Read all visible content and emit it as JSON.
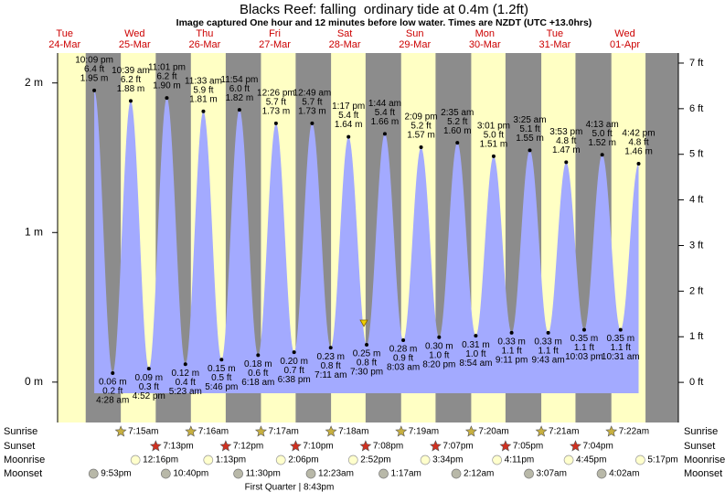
{
  "chart_data": {
    "type": "tide",
    "title": "Blacks Reef: falling  ordinary tide at 0.4m (1.2ft)",
    "subtitle": "Image captured One hour and 12 minutes before low water. Times are NZDT (UTC +13.0hrs)",
    "ylim": [
      -0.27,
      2.2
    ],
    "yticks": [
      {
        "value": 0,
        "label": "0 m"
      },
      {
        "value": 1,
        "label": "1 m"
      },
      {
        "value": 2,
        "label": "2 m"
      }
    ],
    "y2lim": [
      -0.88,
      7.22
    ],
    "y2ticks": [
      {
        "value": 0,
        "label": "0 ft"
      },
      {
        "value": 1,
        "label": "1 ft"
      },
      {
        "value": 2,
        "label": "2 ft"
      },
      {
        "value": 3,
        "label": "3 ft"
      },
      {
        "value": 4,
        "label": "4 ft"
      },
      {
        "value": 5,
        "label": "5 ft"
      },
      {
        "value": 6,
        "label": "6 ft"
      },
      {
        "value": 7,
        "label": "7 ft"
      }
    ],
    "row_labels": [
      "Sunrise",
      "Sunset",
      "Moonrise",
      "Moonset"
    ],
    "days": [
      {
        "weekday": "Tue",
        "date": "24-Mar",
        "sunrise": null,
        "sunset": null,
        "moonrise": null,
        "moonset": "9:53pm",
        "tides": [
          {
            "time": "10:09 pm",
            "m": {
              "value": 1.95,
              "label": "1.95 m"
            },
            "ft": {
              "value": 6.4,
              "label": "6.4 ft"
            }
          }
        ]
      },
      {
        "weekday": "Wed",
        "date": "25-Mar",
        "sunrise": "7:15am",
        "sunset": "7:13pm",
        "moonrise": "12:16pm",
        "moonset": "10:40pm",
        "tides": [
          {
            "time": "4:28 am",
            "m": {
              "value": 0.06,
              "label": "0.06 m"
            },
            "ft": {
              "value": 0.2,
              "label": "0.2 ft"
            }
          },
          {
            "time": "10:39 am",
            "m": {
              "value": 1.88,
              "label": "1.88 m"
            },
            "ft": {
              "value": 6.2,
              "label": "6.2 ft"
            }
          },
          {
            "time": "4:52 pm",
            "m": {
              "value": 0.09,
              "label": "0.09 m"
            },
            "ft": {
              "value": 0.3,
              "label": "0.3 ft"
            }
          },
          {
            "time": "11:01 pm",
            "m": {
              "value": 1.9,
              "label": "1.90 m"
            },
            "ft": {
              "value": 6.2,
              "label": "6.2 ft"
            }
          }
        ]
      },
      {
        "weekday": "Thu",
        "date": "26-Mar",
        "sunrise": "7:16am",
        "sunset": "7:12pm",
        "moonrise": "1:13pm",
        "moonset": "11:30pm",
        "tides": [
          {
            "time": "5:23 am",
            "m": {
              "value": 0.12,
              "label": "0.12 m"
            },
            "ft": {
              "value": 0.4,
              "label": "0.4 ft"
            }
          },
          {
            "time": "11:33 am",
            "m": {
              "value": 1.81,
              "label": "1.81 m"
            },
            "ft": {
              "value": 5.9,
              "label": "5.9 ft"
            }
          },
          {
            "time": "5:46 pm",
            "m": {
              "value": 0.15,
              "label": "0.15 m"
            },
            "ft": {
              "value": 0.5,
              "label": "0.5 ft"
            }
          },
          {
            "time": "11:54 pm",
            "m": {
              "value": 1.82,
              "label": "1.82 m"
            },
            "ft": {
              "value": 6.0,
              "label": "6.0 ft"
            }
          }
        ]
      },
      {
        "weekday": "Fri",
        "date": "27-Mar",
        "sunrise": "7:17am",
        "sunset": "7:10pm",
        "moonrise": "2:06pm",
        "moonset": null,
        "moon_phase": "First Quarter | 8:43pm",
        "tides": [
          {
            "time": "6:18 am",
            "m": {
              "value": 0.18,
              "label": "0.18 m"
            },
            "ft": {
              "value": 0.6,
              "label": "0.6 ft"
            }
          },
          {
            "time": "12:26 pm",
            "m": {
              "value": 1.73,
              "label": "1.73 m"
            },
            "ft": {
              "value": 5.7,
              "label": "5.7 ft"
            }
          },
          {
            "time": "6:38 pm",
            "m": {
              "value": 0.2,
              "label": "0.20 m"
            },
            "ft": {
              "value": 0.7,
              "label": "0.7 ft"
            }
          }
        ]
      },
      {
        "weekday": "Sat",
        "date": "28-Mar",
        "sunrise": "7:18am",
        "sunset": "7:08pm",
        "moonrise": "2:52pm",
        "moonset": "12:23am",
        "tides": [
          {
            "time": "12:49 am",
            "m": {
              "value": 1.73,
              "label": "1.73 m"
            },
            "ft": {
              "value": 5.7,
              "label": "5.7 ft"
            }
          },
          {
            "time": "7:11 am",
            "m": {
              "value": 0.23,
              "label": "0.23 m"
            },
            "ft": {
              "value": 0.8,
              "label": "0.8 ft"
            }
          },
          {
            "time": "1:17 pm",
            "m": {
              "value": 1.64,
              "label": "1.64 m"
            },
            "ft": {
              "value": 5.4,
              "label": "5.4 ft"
            }
          },
          {
            "time": "7:30 pm",
            "m": {
              "value": 0.25,
              "label": "0.25 m"
            },
            "ft": {
              "value": 0.8,
              "label": "0.8 ft"
            }
          }
        ]
      },
      {
        "weekday": "Sun",
        "date": "29-Mar",
        "sunrise": "7:19am",
        "sunset": "7:07pm",
        "moonrise": "3:34pm",
        "moonset": "1:17am",
        "tides": [
          {
            "time": "1:44 am",
            "m": {
              "value": 1.66,
              "label": "1.66 m"
            },
            "ft": {
              "value": 5.4,
              "label": "5.4 ft"
            }
          },
          {
            "time": "8:03 am",
            "m": {
              "value": 0.28,
              "label": "0.28 m"
            },
            "ft": {
              "value": 0.9,
              "label": "0.9 ft"
            }
          },
          {
            "time": "2:09 pm",
            "m": {
              "value": 1.57,
              "label": "1.57 m"
            },
            "ft": {
              "value": 5.2,
              "label": "5.2 ft"
            }
          },
          {
            "time": "8:20 pm",
            "m": {
              "value": 0.3,
              "label": "0.30 m"
            },
            "ft": {
              "value": 1.0,
              "label": "1.0 ft"
            }
          }
        ]
      },
      {
        "weekday": "Mon",
        "date": "30-Mar",
        "sunrise": "7:20am",
        "sunset": "7:05pm",
        "moonrise": "4:11pm",
        "moonset": "2:12am",
        "tides": [
          {
            "time": "2:35 am",
            "m": {
              "value": 1.6,
              "label": "1.60 m"
            },
            "ft": {
              "value": 5.2,
              "label": "5.2 ft"
            }
          },
          {
            "time": "8:54 am",
            "m": {
              "value": 0.31,
              "label": "0.31 m"
            },
            "ft": {
              "value": 1.0,
              "label": "1.0 ft"
            }
          },
          {
            "time": "3:01 pm",
            "m": {
              "value": 1.51,
              "label": "1.51 m"
            },
            "ft": {
              "value": 5.0,
              "label": "5.0 ft"
            }
          },
          {
            "time": "9:11 pm",
            "m": {
              "value": 0.33,
              "label": "0.33 m"
            },
            "ft": {
              "value": 1.1,
              "label": "1.1 ft"
            }
          }
        ]
      },
      {
        "weekday": "Tue",
        "date": "31-Mar",
        "sunrise": "7:21am",
        "sunset": "7:04pm",
        "moonrise": "4:45pm",
        "moonset": "3:07am",
        "tides": [
          {
            "time": "3:25 am",
            "m": {
              "value": 1.55,
              "label": "1.55 m"
            },
            "ft": {
              "value": 5.1,
              "label": "5.1 ft"
            }
          },
          {
            "time": "9:43 am",
            "m": {
              "value": 0.33,
              "label": "0.33 m"
            },
            "ft": {
              "value": 1.1,
              "label": "1.1 ft"
            }
          },
          {
            "time": "3:53 pm",
            "m": {
              "value": 1.47,
              "label": "1.47 m"
            },
            "ft": {
              "value": 4.8,
              "label": "4.8 ft"
            }
          },
          {
            "time": "10:03 pm",
            "m": {
              "value": 0.35,
              "label": "0.35 m"
            },
            "ft": {
              "value": 1.1,
              "label": "1.1 ft"
            }
          }
        ]
      },
      {
        "weekday": "Wed",
        "date": "01-Apr",
        "sunrise": "7:22am",
        "sunset": null,
        "moonrise": "5:17pm",
        "moonset": "4:02am",
        "tides": [
          {
            "time": "4:13 am",
            "m": {
              "value": 1.52,
              "label": "1.52 m"
            },
            "ft": {
              "value": 5.0,
              "label": "5.0 ft"
            }
          },
          {
            "time": "10:31 am",
            "m": {
              "value": 0.35,
              "label": "0.35 m"
            },
            "ft": {
              "value": 1.1,
              "label": "1.1 ft"
            }
          },
          {
            "time": "4:42 pm",
            "m": {
              "value": 1.46,
              "label": "1.46 m"
            },
            "ft": {
              "value": 4.8,
              "label": "4.8 ft"
            }
          }
        ]
      }
    ]
  }
}
